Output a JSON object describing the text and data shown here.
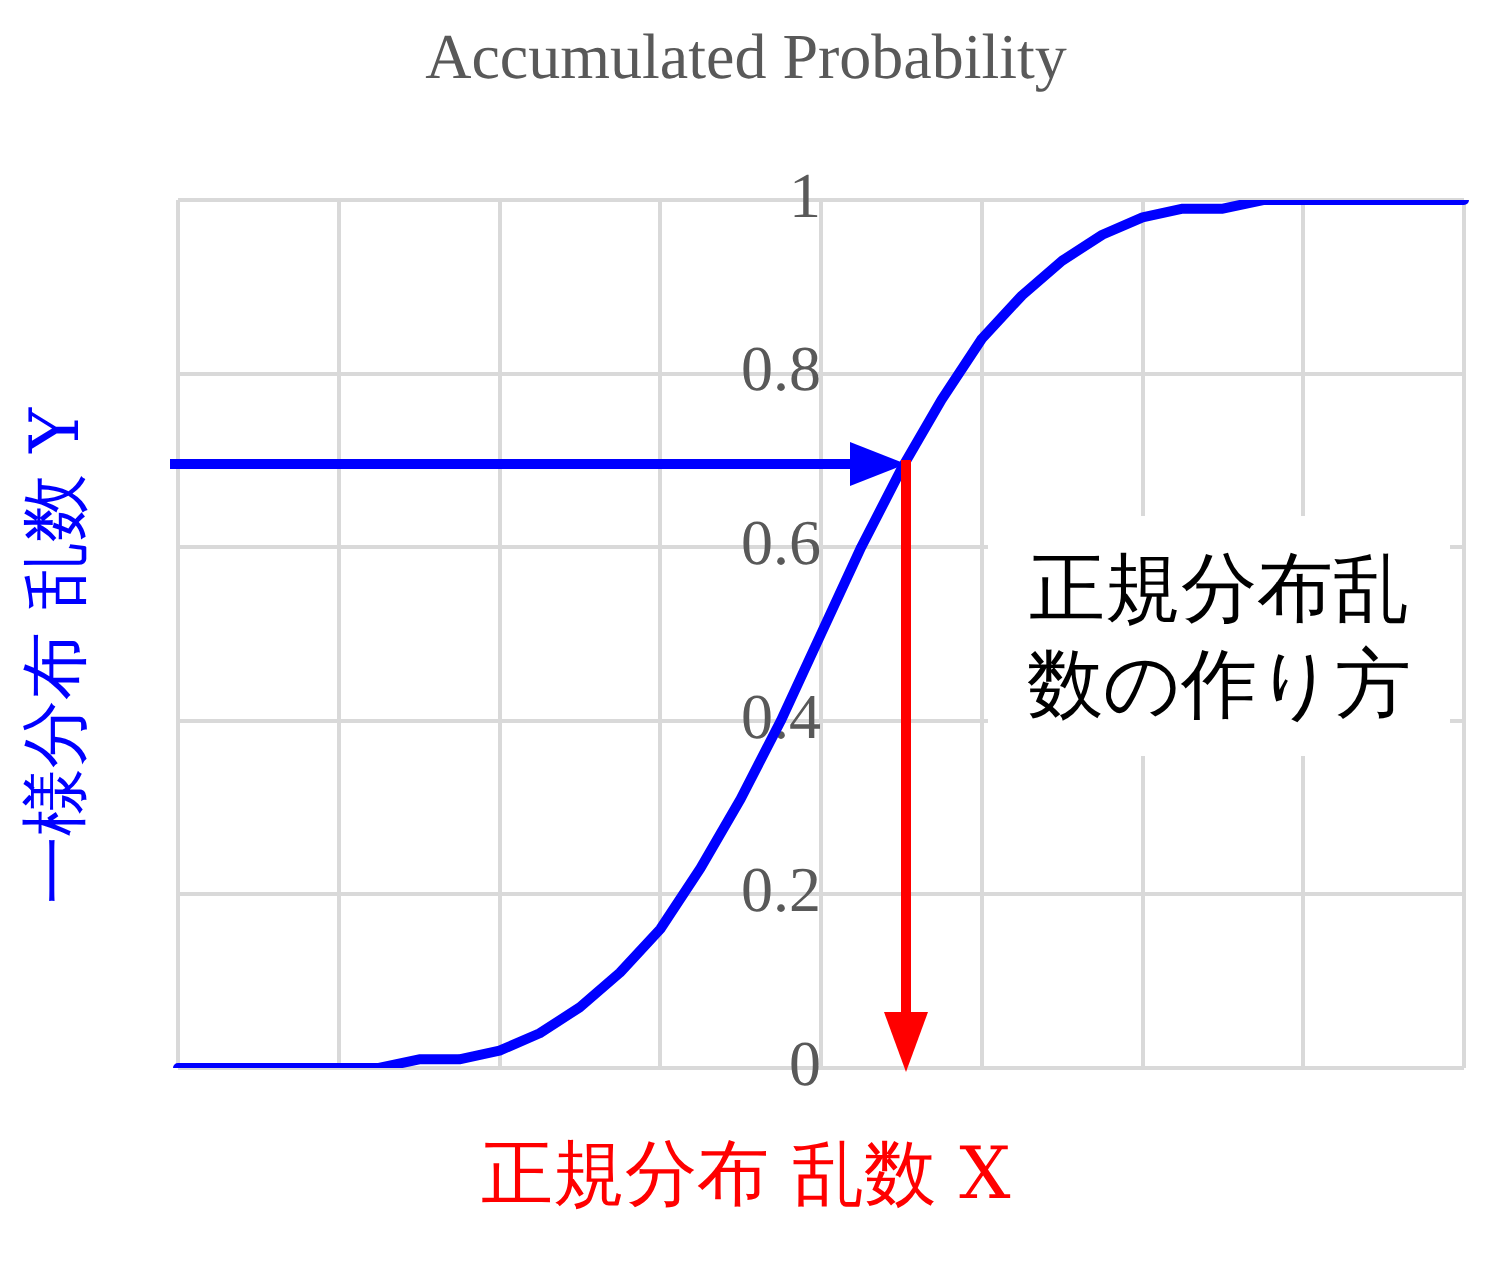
{
  "chart_data": {
    "type": "line",
    "title": "Accumulated Probability",
    "xlabel": "正規分布 乱数 X",
    "ylabel": "一様分布 乱数 Y",
    "categories": [
      null,
      null,
      null,
      null,
      null,
      null,
      null,
      null,
      null,
      null,
      null,
      null,
      null,
      null,
      null,
      null,
      null,
      null,
      null,
      null,
      null,
      null,
      null,
      null,
      null,
      null,
      null,
      null,
      null,
      null,
      null,
      null,
      null
    ],
    "series": [
      {
        "color": "#0000ff",
        "values": [
          0,
          0,
          0,
          0,
          0,
          0,
          0.01,
          0.01,
          0.02,
          0.04,
          0.07,
          0.11,
          0.16,
          0.23,
          0.31,
          0.4,
          0.5,
          0.6,
          0.69,
          0.77,
          0.84,
          0.89,
          0.93,
          0.96,
          0.98,
          0.99,
          0.99,
          1,
          1,
          1,
          1,
          1,
          1
        ]
      }
    ],
    "ylim": [
      0,
      1
    ],
    "yticks": [
      0,
      0.2,
      0.4,
      0.6,
      0.8,
      1
    ],
    "annotations": [
      "正規分布乱数の作り方"
    ],
    "grid": true,
    "legend": false,
    "marker": "none",
    "line_style": "solid",
    "tick_labels": "y"
  }
}
